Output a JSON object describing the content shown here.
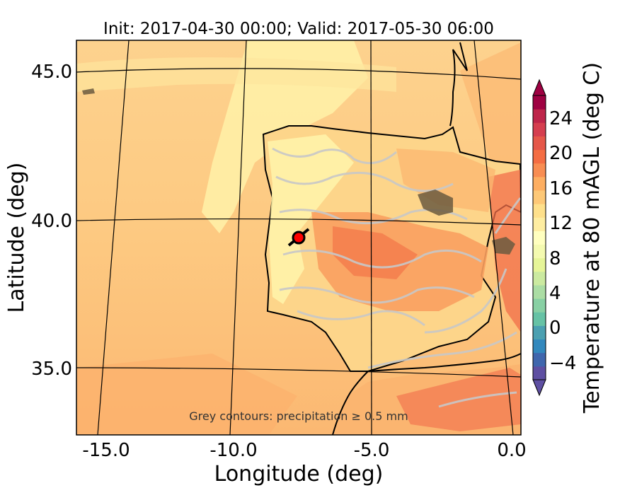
{
  "title": "Init: 2017-04-30 00:00; Valid: 2017-05-30 06:00",
  "axes": {
    "xlabel": "Longitude (deg)",
    "ylabel": "Latitude (deg)",
    "xticks": [
      "-15.0",
      "-10.0",
      "-5.0",
      "0.0"
    ],
    "yticks": [
      "45.0",
      "40.0",
      "35.0"
    ]
  },
  "colorbar": {
    "label": "Temperature at 80 mAGL (deg C)",
    "ticks": [
      "24",
      "20",
      "16",
      "12",
      "8",
      "4",
      "0",
      "−4"
    ],
    "min": -6,
    "max": 28,
    "colors": [
      "#5e4fa2",
      "#3f66ad",
      "#3288bd",
      "#4ba0b1",
      "#66c2a5",
      "#88d0a4",
      "#abdda4",
      "#cbeaa0",
      "#e6f598",
      "#f4fab0",
      "#ffffbf",
      "#feeda1",
      "#fee08b",
      "#fdc877",
      "#fdae61",
      "#f88d52",
      "#f46d43",
      "#e55749",
      "#d53e4f",
      "#be254a",
      "#9e0142"
    ]
  },
  "annotation": "Grey contours: precipitation $\\geq$ 0.5 mm",
  "marker": {
    "label": "site",
    "lon": -7.6,
    "lat": 39.4,
    "color": "#ff0000"
  },
  "map_colors": {
    "ocean": "#fdce8a",
    "ocean_warm": "#fcbf75",
    "cool_band": "#fff3a8",
    "land_base": "#fdd88f",
    "land_warm": "#f9a564",
    "land_hot": "#f26d4a",
    "precip": "#c8c8c8",
    "coast": "#000000"
  }
}
